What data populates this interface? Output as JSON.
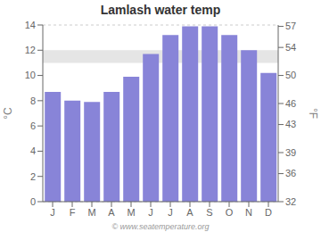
{
  "chart_data": {
    "type": "bar",
    "title": "Lamlash water temp",
    "categories": [
      "J",
      "F",
      "M",
      "A",
      "M",
      "J",
      "J",
      "A",
      "S",
      "O",
      "N",
      "D"
    ],
    "values": [
      8.7,
      8.0,
      7.9,
      8.7,
      9.9,
      11.7,
      13.2,
      13.9,
      13.9,
      13.2,
      12.0,
      10.2
    ],
    "ylim": [
      0,
      14
    ],
    "yticks": [
      0,
      2,
      4,
      6,
      8,
      10,
      12,
      14
    ],
    "ylabel": "°C",
    "y2lim": [
      32,
      57.2
    ],
    "y2ticks": [
      32,
      36,
      39,
      43,
      46,
      50,
      54,
      57
    ],
    "y2label": "°F",
    "band": [
      11.0,
      12.0
    ],
    "grid": true,
    "annotations": [
      "© www.seatemperature.org"
    ]
  }
}
